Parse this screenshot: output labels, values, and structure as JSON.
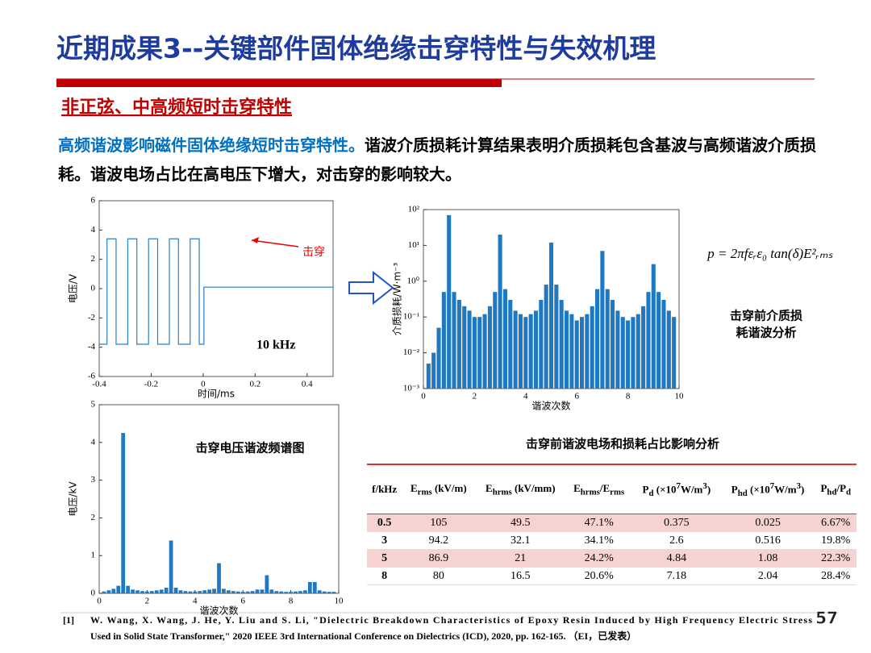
{
  "header": {
    "title": "近期成果3--关键部件固体绝缘击穿特性与失效机理",
    "subtitle": "非正弦、中高频短时击穿特性"
  },
  "intro": {
    "highlight": "高频谐波影响磁件固体绝缘短时击穿特性。",
    "text": "谐波介质损耗计算结果表明介质损耗包含基波与高频谐波介质损耗。谐波电场占比在高电压下增大，对击穿的影响较大。"
  },
  "chart_data": [
    {
      "type": "line",
      "color": "#2a7fc1",
      "xlabel": "时间/ms",
      "ylabel": "电压/V",
      "annotations": [
        "击穿",
        "10 kHz"
      ],
      "x": [
        -0.4,
        -0.37,
        -0.37,
        -0.335,
        -0.335,
        -0.29,
        -0.29,
        -0.255,
        -0.255,
        -0.21,
        -0.21,
        -0.175,
        -0.175,
        -0.13,
        -0.13,
        -0.095,
        -0.095,
        -0.05,
        -0.05,
        -0.015,
        -0.015,
        0.003,
        0.003,
        0.5
      ],
      "values": [
        -3.8,
        -3.8,
        3.4,
        3.4,
        -3.8,
        -3.8,
        3.4,
        3.4,
        -3.8,
        -3.8,
        3.4,
        3.4,
        -3.8,
        -3.8,
        3.4,
        3.4,
        -3.8,
        -3.8,
        3.4,
        3.4,
        -3.8,
        -3.8,
        0.1,
        0.1
      ],
      "xlim": [
        -0.4,
        0.5
      ],
      "xticks": [
        -0.4,
        -0.2,
        0,
        0.2,
        0.4
      ],
      "ylim": [
        -6,
        6
      ],
      "yticks": [
        -6,
        -4,
        -2,
        0,
        2,
        4,
        6
      ]
    },
    {
      "type": "bar",
      "color": "#1e78c2",
      "log_y": true,
      "xlabel": "谐波次数",
      "ylabel": "介质损耗/W·m⁻³",
      "formula": "p = 2πfεᵣε₀ tan(δ)E²ᵣₘₛ",
      "annotations": [
        "击穿前介质损",
        "耗谐波分析"
      ],
      "x": [
        0.2,
        0.4,
        0.6,
        0.8,
        1.0,
        1.2,
        1.4,
        1.6,
        1.8,
        2.0,
        2.2,
        2.4,
        2.6,
        2.8,
        3.0,
        3.2,
        3.4,
        3.6,
        3.8,
        4.0,
        4.2,
        4.4,
        4.6,
        4.8,
        5.0,
        5.2,
        5.4,
        5.6,
        5.8,
        6.0,
        6.2,
        6.4,
        6.6,
        6.8,
        7.0,
        7.2,
        7.4,
        7.6,
        7.8,
        8.0,
        8.2,
        8.4,
        8.6,
        8.8,
        9.0,
        9.2,
        9.4,
        9.6,
        9.8
      ],
      "values": [
        0.005,
        0.01,
        0.05,
        0.5,
        70,
        0.5,
        0.3,
        0.2,
        0.15,
        0.1,
        0.1,
        0.12,
        0.2,
        0.5,
        20,
        0.6,
        0.3,
        0.15,
        0.12,
        0.1,
        0.12,
        0.15,
        0.3,
        0.8,
        12,
        0.8,
        0.3,
        0.15,
        0.12,
        0.08,
        0.1,
        0.12,
        0.2,
        0.6,
        7,
        0.6,
        0.3,
        0.15,
        0.1,
        0.08,
        0.1,
        0.12,
        0.2,
        0.5,
        3,
        0.5,
        0.3,
        0.15,
        0.1
      ],
      "xlim": [
        0,
        10
      ],
      "xticks": [
        0,
        2,
        4,
        6,
        8,
        10
      ],
      "ylim": [
        0.001,
        100
      ],
      "yticks": [
        {
          "value": 0.001,
          "label": "10⁻³"
        },
        {
          "value": 0.01,
          "label": "10⁻²"
        },
        {
          "value": 0.1,
          "label": "10⁻¹"
        },
        {
          "value": 1,
          "label": "10⁰"
        },
        {
          "value": 10,
          "label": "10¹"
        },
        {
          "value": 100,
          "label": "10²"
        }
      ]
    },
    {
      "type": "bar",
      "color": "#1e78c2",
      "title": "击穿电压谐波频谱图",
      "xlabel": "谐波次数",
      "ylabel": "电压/kV",
      "x": [
        0.2,
        0.4,
        0.6,
        0.8,
        1.0,
        1.2,
        1.4,
        1.6,
        1.8,
        2.0,
        2.2,
        2.4,
        2.6,
        2.8,
        3.0,
        3.2,
        3.4,
        3.6,
        3.8,
        4.0,
        4.2,
        4.4,
        4.6,
        4.8,
        5.0,
        5.2,
        5.4,
        5.6,
        5.8,
        6.0,
        6.2,
        6.4,
        6.6,
        6.8,
        7.0,
        7.2,
        7.4,
        7.6,
        7.8,
        8.0,
        8.2,
        8.4,
        8.6,
        8.8,
        9.0,
        9.2,
        9.4,
        9.6,
        9.8
      ],
      "values": [
        0.05,
        0.08,
        0.12,
        0.2,
        4.25,
        0.2,
        0.1,
        0.08,
        0.06,
        0.05,
        0.06,
        0.08,
        0.1,
        0.15,
        1.4,
        0.15,
        0.08,
        0.06,
        0.05,
        0.05,
        0.06,
        0.08,
        0.1,
        0.12,
        0.8,
        0.12,
        0.08,
        0.06,
        0.05,
        0.04,
        0.05,
        0.06,
        0.1,
        0.1,
        0.48,
        0.1,
        0.06,
        0.05,
        0.04,
        0.04,
        0.05,
        0.06,
        0.08,
        0.3,
        0.3,
        0.08,
        0.05,
        0.04,
        0.04
      ],
      "xlim": [
        0,
        10
      ],
      "xticks": [
        0,
        2,
        4,
        6,
        8,
        10
      ],
      "ylim": [
        0,
        5
      ],
      "yticks": [
        0,
        1,
        2,
        3,
        4,
        5
      ]
    }
  ],
  "table": {
    "title": "击穿前谐波电场和损耗占比影响分析",
    "headers": [
      [
        {
          "text": "f/kHz"
        }
      ],
      [
        {
          "text": "E"
        },
        {
          "text": "rms",
          "script": "sub"
        },
        {
          "text": " (kV/m)"
        }
      ],
      [
        {
          "text": "E"
        },
        {
          "text": "hrms",
          "script": "sub"
        },
        {
          "text": " (kV/mm)"
        }
      ],
      [
        {
          "text": "E"
        },
        {
          "text": "hrms",
          "script": "sub"
        },
        {
          "text": "/E"
        },
        {
          "text": "rms",
          "script": "sub"
        }
      ],
      [
        {
          "text": "P"
        },
        {
          "text": "d",
          "script": "sub"
        },
        {
          "text": " (×10"
        },
        {
          "text": "7",
          "script": "sup"
        },
        {
          "text": "W/m"
        },
        {
          "text": "3",
          "script": "sup"
        },
        {
          "text": ")"
        }
      ],
      [
        {
          "text": "P"
        },
        {
          "text": "hd",
          "script": "sub"
        },
        {
          "text": " (×10"
        },
        {
          "text": "7",
          "script": "sup"
        },
        {
          "text": "W/m"
        },
        {
          "text": "3",
          "script": "sup"
        },
        {
          "text": ")"
        }
      ],
      [
        {
          "text": "P"
        },
        {
          "text": "hd",
          "script": "sub"
        },
        {
          "text": "/P"
        },
        {
          "text": "d",
          "script": "sub"
        }
      ]
    ],
    "rows": [
      [
        "0.5",
        "105",
        "49.5",
        "47.1%",
        "0.375",
        "0.025",
        "6.67%"
      ],
      [
        "3",
        "94.2",
        "32.1",
        "34.1%",
        "2.6",
        "0.516",
        "19.8%"
      ],
      [
        "5",
        "86.9",
        "21",
        "24.2%",
        "4.84",
        "1.08",
        "22.3%"
      ],
      [
        "8",
        "80",
        "16.5",
        "20.6%",
        "7.18",
        "2.04",
        "28.4%"
      ]
    ]
  },
  "footer": {
    "ref_no": "[1]",
    "ref_line1": "W. Wang, X. Wang, J. He, Y. Liu and S. Li, \"Dielectric Breakdown Characteristics of Epoxy Resin Induced by High Frequency Electric Stress",
    "ref_line2": "Used in Solid State Transformer,\" 2020 IEEE 3rd International Conference on Dielectrics (ICD), 2020, pp. 162-165. （EI，已发表）",
    "page": "57"
  }
}
